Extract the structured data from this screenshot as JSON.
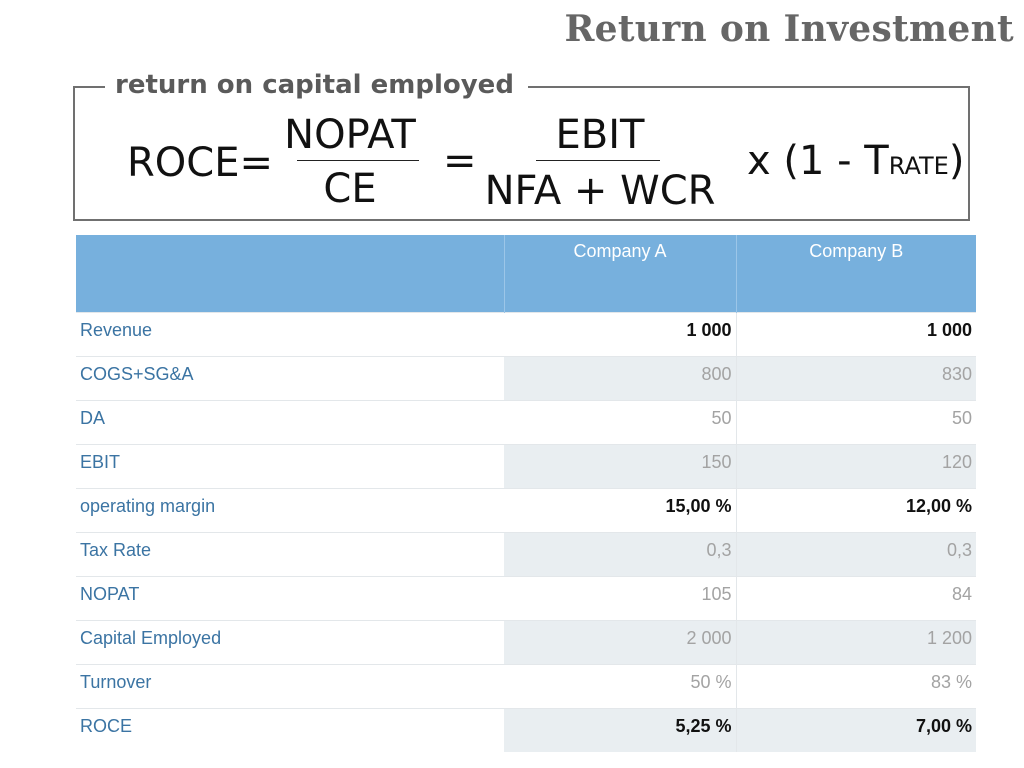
{
  "title": "Return on Investment",
  "formula": {
    "legend": "return on capital employed",
    "lhs": "ROCE=",
    "frac1_num": "NOPAT",
    "frac1_den": "CE",
    "equals": "=",
    "frac2_num": "EBIT",
    "frac2_den": "NFA + WCR",
    "multiplier_prefix": "x (1 - T",
    "multiplier_sub": "RATE",
    "multiplier_suffix": ")"
  },
  "table": {
    "headers": [
      "",
      "Company A",
      "Company B"
    ],
    "rows": [
      {
        "label": "Revenue",
        "a": "1 000",
        "b": "1 000"
      },
      {
        "label": "COGS+SG&A",
        "a": "800",
        "b": "830"
      },
      {
        "label": "DA",
        "a": "50",
        "b": "50"
      },
      {
        "label": "EBIT",
        "a": "150",
        "b": "120"
      },
      {
        "label": "operating margin",
        "a": "15,00 %",
        "b": "12,00 %"
      },
      {
        "label": "Tax Rate",
        "a": "0,3",
        "b": "0,3"
      },
      {
        "label": "NOPAT",
        "a": "105",
        "b": "84"
      },
      {
        "label": "Capital Employed",
        "a": "2 000",
        "b": "1 200"
      },
      {
        "label": "Turnover",
        "a": "50 %",
        "b": "83 %"
      },
      {
        "label": "ROCE",
        "a": "5,25 %",
        "b": "7,00 %"
      }
    ]
  }
}
